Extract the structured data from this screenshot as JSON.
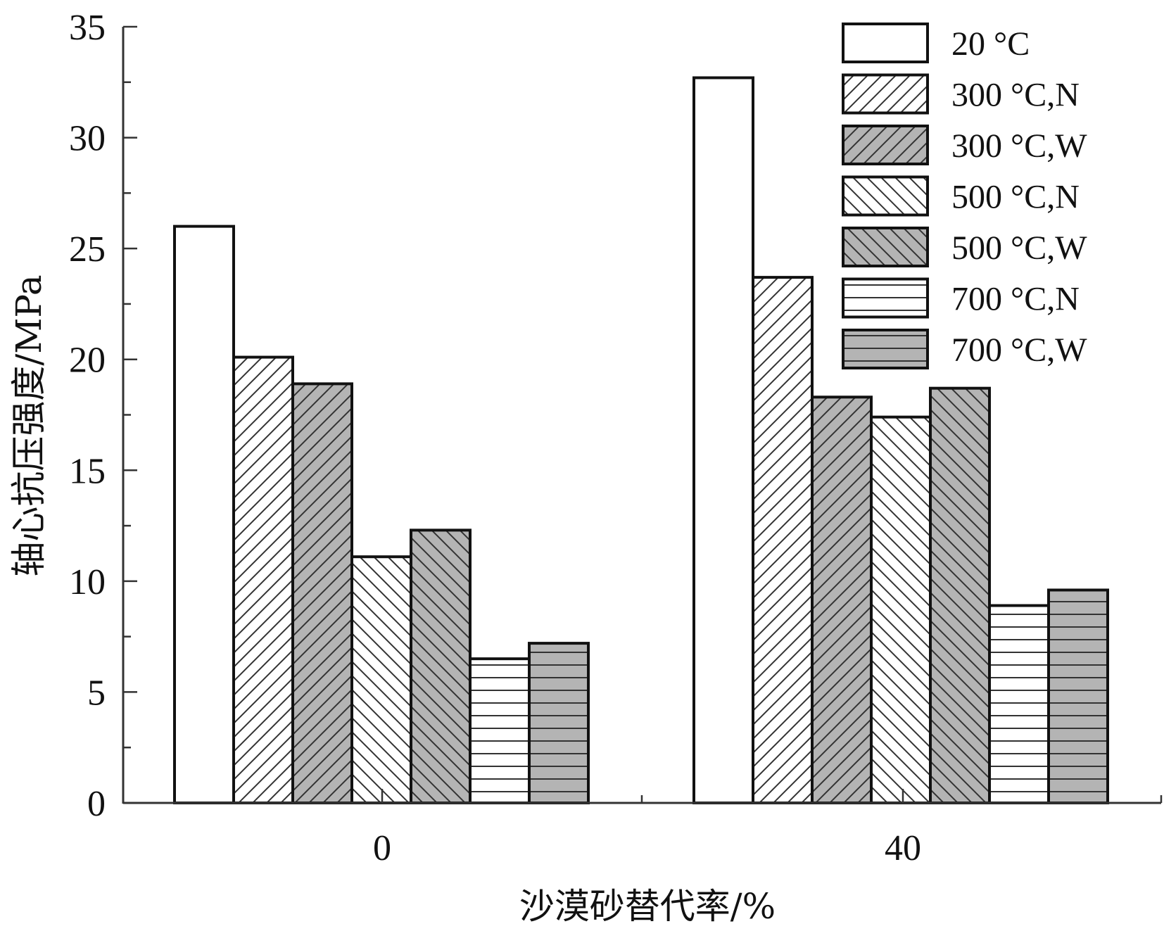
{
  "chart_data": {
    "type": "bar",
    "title": "",
    "xlabel": "沙漠砂替代率/%",
    "ylabel": "轴心抗压强度/MPa",
    "categories": [
      "0",
      "40"
    ],
    "ylim": [
      0,
      35
    ],
    "yticks": [
      0,
      5,
      10,
      15,
      20,
      25,
      30,
      35
    ],
    "grid": false,
    "legend_position": "top-right",
    "series": [
      {
        "name": "20 °C",
        "values": [
          26.0,
          32.7
        ],
        "fill": "#ffffff",
        "pattern": "none"
      },
      {
        "name": "300 °C,N",
        "values": [
          20.1,
          23.7
        ],
        "fill": "#ffffff",
        "pattern": "diag-up"
      },
      {
        "name": "300 °C,W",
        "values": [
          18.9,
          18.3
        ],
        "fill": "#b4b4b4",
        "pattern": "diag-up"
      },
      {
        "name": "500 °C,N",
        "values": [
          11.1,
          17.4
        ],
        "fill": "#ffffff",
        "pattern": "diag-down"
      },
      {
        "name": "500 °C,W",
        "values": [
          12.3,
          18.7
        ],
        "fill": "#b4b4b4",
        "pattern": "diag-down"
      },
      {
        "name": "700 °C,N",
        "values": [
          6.5,
          8.9
        ],
        "fill": "#ffffff",
        "pattern": "horizontal"
      },
      {
        "name": "700 °C,W",
        "values": [
          7.2,
          9.6
        ],
        "fill": "#b4b4b4",
        "pattern": "horizontal"
      }
    ]
  }
}
